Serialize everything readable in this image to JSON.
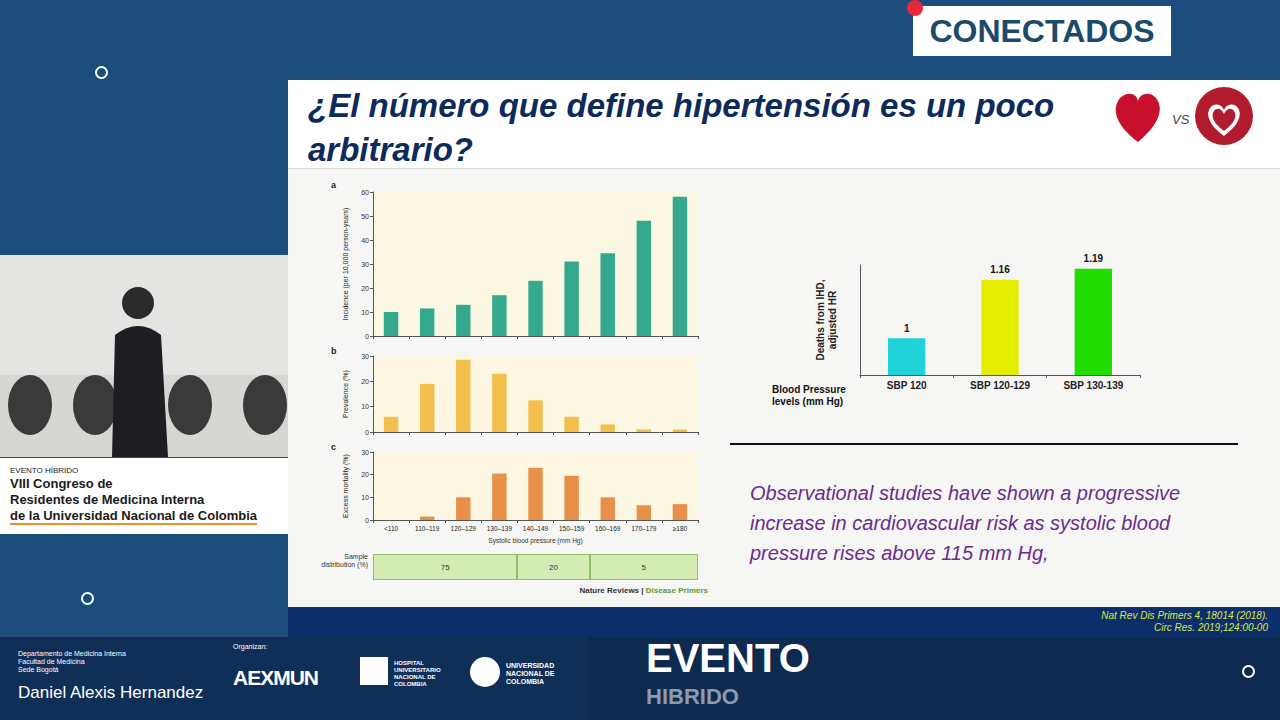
{
  "slide": {
    "title": "¿El número que define hipertensión es un poco arbitrario?",
    "vs": "VS",
    "caption": "Observational studies have shown a progressive increase in cardiovascular risk as systolic blood pressure rises above 115 mm Hg,",
    "references": [
      "Nat Rev Dis Primers 4, 18014 (2018).",
      "Circ Res. 2019;124:00-00"
    ]
  },
  "overlay": {
    "badge": "CONECTADOS",
    "event_box": [
      "EVENTO HÍBRIDO",
      "VIII Congreso de",
      "Residentes de Medicina Interna",
      "de la Universidad Nacional de Colombia"
    ],
    "department": [
      "Departamento de Medicina Interna",
      "Facultad de Medicina",
      "Sede Bogotá"
    ],
    "organizers_label": "Organizan:",
    "organizers": [
      "AEXMUN",
      "HOSPITAL UNIVERSITARIO NACIONAL DE COLOMBIA",
      "UNIVERSIDAD NACIONAL DE COLOMBIA"
    ],
    "event_banner": [
      "EVENTO",
      "HIBRIDO"
    ],
    "speaker": "Daniel Alexis Hernandez"
  },
  "figure": {
    "source": "Nature Reviews |",
    "source_highlight": "Disease Primers",
    "sample_distribution": {
      "label": "Sample distribution (%)",
      "values": [
        75,
        20,
        5
      ],
      "category_counts": [
        4,
        2,
        3
      ]
    }
  },
  "chart_data": [
    {
      "type": "bar",
      "panel_label": "a",
      "ylabel": "Incidence (per 10,000 person-years)",
      "categories": [
        "<110",
        "110–119",
        "120–129",
        "130–139",
        "140–149",
        "150–159",
        "160–169",
        "170–179",
        "≥180"
      ],
      "values": [
        10,
        11.5,
        13,
        17,
        23,
        31,
        34.5,
        48,
        58
      ],
      "color": "#35a98e",
      "ylim": [
        0,
        60
      ],
      "yticks": [
        0,
        10,
        20,
        30,
        40,
        50,
        60
      ],
      "tick_labels": "y",
      "grid": false
    },
    {
      "type": "bar",
      "panel_label": "b",
      "ylabel": "Prevalence (%)",
      "categories": [
        "<110",
        "110–119",
        "120–129",
        "130–139",
        "140–149",
        "150–159",
        "160–169",
        "170–179",
        "≥180"
      ],
      "values": [
        6,
        19,
        28.5,
        23,
        12.5,
        6,
        3,
        1,
        1
      ],
      "color": "#f3bf4c",
      "ylim": [
        0,
        30
      ],
      "yticks": [
        0,
        10,
        20,
        30
      ],
      "tick_labels": "y",
      "grid": false
    },
    {
      "type": "bar",
      "panel_label": "c",
      "ylabel": "Excess mortality (%)",
      "xlabel": "Systolic blood pressure (mm Hg)",
      "categories": [
        "<110",
        "110–119",
        "120–129",
        "130–139",
        "140–149",
        "150–159",
        "160–169",
        "170–179",
        "≥180"
      ],
      "values": [
        0,
        1.5,
        10,
        20.5,
        23,
        19.5,
        10,
        6.5,
        7
      ],
      "color": "#e8904a",
      "ylim": [
        0,
        30
      ],
      "yticks": [
        0,
        10,
        20,
        30
      ],
      "grid": false
    },
    {
      "type": "bar",
      "ylabel": "Deaths from IHD, adjusted HR",
      "xlabel": "Blood Pressure levels (mm Hg)",
      "categories": [
        "SBP 120",
        "SBP 120-129",
        "SBP 130-139"
      ],
      "values": [
        1,
        1.16,
        1.19
      ],
      "colors": [
        "#1fd3d8",
        "#e6ee00",
        "#22dd00"
      ],
      "ylim": [
        0.9,
        1.2
      ],
      "yticks": [],
      "data_labels": true,
      "tick_labels": "x",
      "grid": false
    }
  ]
}
